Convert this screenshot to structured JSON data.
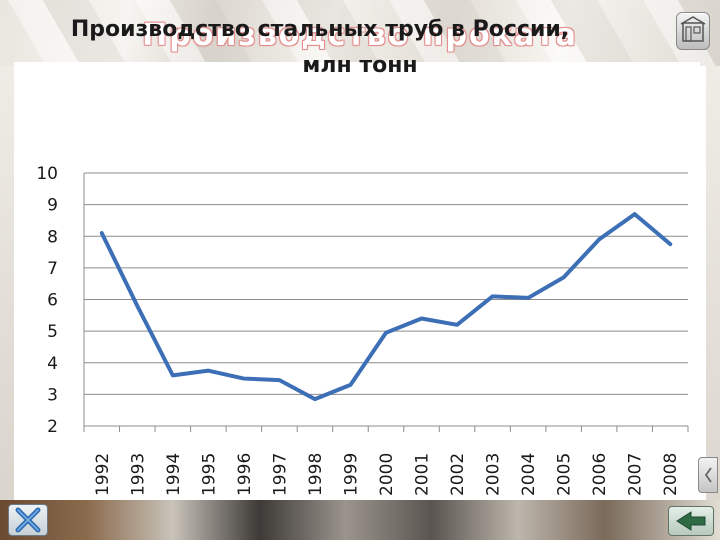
{
  "slide": {
    "title": "Производство проката"
  },
  "nav": {
    "home_icon": "home-icon",
    "close_icon": "close-x-icon",
    "back_icon": "back-arrow-icon",
    "side_icon": "side-tab-icon"
  },
  "colors": {
    "line": "#3c6fb6",
    "grid": "#8c8c8c",
    "title_glow": "#e48f8f"
  },
  "chart_data": {
    "type": "line",
    "title_line1": "Производство стальных труб в России,",
    "title_line2": "млн тонн",
    "x": [
      "1992",
      "1993",
      "1994",
      "1995",
      "1996",
      "1997",
      "1998",
      "1999",
      "2000",
      "2001",
      "2002",
      "2003",
      "2004",
      "2005",
      "2006",
      "2007",
      "2008"
    ],
    "series": [
      {
        "values": [
          8.1,
          5.8,
          3.6,
          3.75,
          3.5,
          3.45,
          2.85,
          3.3,
          4.95,
          5.4,
          5.2,
          6.1,
          6.05,
          6.7,
          7.9,
          8.7,
          7.75
        ]
      }
    ],
    "ylim": [
      2,
      10
    ],
    "yticks": [
      "2",
      "3",
      "4",
      "5",
      "6",
      "7",
      "8",
      "9",
      "10"
    ],
    "grid": true,
    "legend": "none"
  }
}
